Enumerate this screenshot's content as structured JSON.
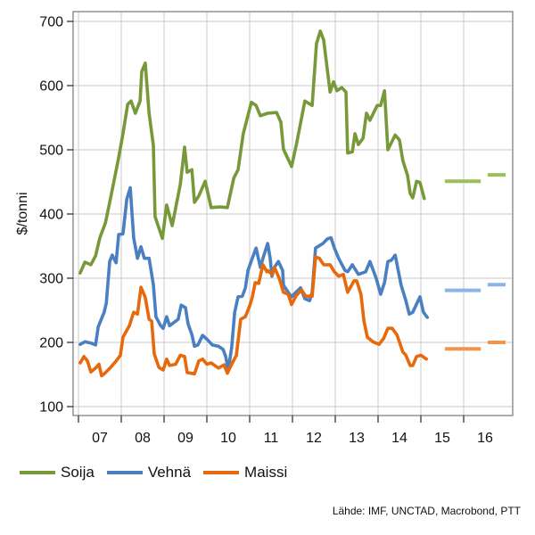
{
  "chart_data": {
    "type": "line",
    "title": "",
    "ylabel": "$/tonni",
    "xlabel": "",
    "ylim": [
      100,
      700
    ],
    "xlim": [
      2006.875,
      2017.35
    ],
    "yticks": [
      100,
      200,
      300,
      400,
      500,
      600,
      700
    ],
    "xtick_labels": [
      "07",
      "08",
      "09",
      "10",
      "11",
      "12",
      "13",
      "14",
      "15",
      "16"
    ],
    "grid": true,
    "legend_position": "bottom-left",
    "series": [
      {
        "name": "Soija",
        "color": "#77993a",
        "forecast_color": "#9bbf5a",
        "points": [
          [
            2007.04,
            308
          ],
          [
            2007.15,
            325
          ],
          [
            2007.29,
            321
          ],
          [
            2007.4,
            335
          ],
          [
            2007.5,
            363
          ],
          [
            2007.63,
            386
          ],
          [
            2007.73,
            418
          ],
          [
            2007.83,
            451
          ],
          [
            2007.94,
            488
          ],
          [
            2008.04,
            525
          ],
          [
            2008.15,
            571
          ],
          [
            2008.23,
            576
          ],
          [
            2008.33,
            557
          ],
          [
            2008.44,
            576
          ],
          [
            2008.48,
            622
          ],
          [
            2008.56,
            635
          ],
          [
            2008.65,
            557
          ],
          [
            2008.75,
            507
          ],
          [
            2008.79,
            396
          ],
          [
            2008.96,
            362
          ],
          [
            2009.06,
            414
          ],
          [
            2009.19,
            382
          ],
          [
            2009.38,
            446
          ],
          [
            2009.48,
            504
          ],
          [
            2009.54,
            465
          ],
          [
            2009.65,
            469
          ],
          [
            2009.71,
            418
          ],
          [
            2009.81,
            428
          ],
          [
            2009.96,
            451
          ],
          [
            2010.1,
            410
          ],
          [
            2010.31,
            411
          ],
          [
            2010.48,
            410
          ],
          [
            2010.63,
            456
          ],
          [
            2010.73,
            469
          ],
          [
            2010.85,
            525
          ],
          [
            2011.04,
            574
          ],
          [
            2011.15,
            569
          ],
          [
            2011.25,
            553
          ],
          [
            2011.42,
            557
          ],
          [
            2011.63,
            558
          ],
          [
            2011.73,
            543
          ],
          [
            2011.79,
            501
          ],
          [
            2011.98,
            474
          ],
          [
            2012.1,
            511
          ],
          [
            2012.29,
            576
          ],
          [
            2012.46,
            569
          ],
          [
            2012.56,
            665
          ],
          [
            2012.65,
            685
          ],
          [
            2012.73,
            671
          ],
          [
            2012.88,
            590
          ],
          [
            2012.96,
            606
          ],
          [
            2013.04,
            592
          ],
          [
            2013.15,
            597
          ],
          [
            2013.25,
            590
          ],
          [
            2013.29,
            495
          ],
          [
            2013.4,
            497
          ],
          [
            2013.46,
            525
          ],
          [
            2013.54,
            508
          ],
          [
            2013.65,
            518
          ],
          [
            2013.73,
            557
          ],
          [
            2013.81,
            546
          ],
          [
            2013.98,
            569
          ],
          [
            2014.06,
            569
          ],
          [
            2014.15,
            592
          ],
          [
            2014.23,
            500
          ],
          [
            2014.4,
            523
          ],
          [
            2014.5,
            515
          ],
          [
            2014.58,
            483
          ],
          [
            2014.69,
            460
          ],
          [
            2014.75,
            432
          ],
          [
            2014.81,
            425
          ],
          [
            2014.9,
            451
          ],
          [
            2014.98,
            449
          ],
          [
            2015.08,
            424
          ]
        ],
        "forecast": [
          {
            "year": 2015,
            "value": 451
          },
          {
            "year": 2016,
            "value": 461
          }
        ]
      },
      {
        "name": "Vehnä",
        "color": "#4a7fc1",
        "forecast_color": "#8db4e6",
        "points": [
          [
            2007.04,
            197
          ],
          [
            2007.15,
            201
          ],
          [
            2007.29,
            199
          ],
          [
            2007.4,
            196
          ],
          [
            2007.46,
            224
          ],
          [
            2007.6,
            247
          ],
          [
            2007.65,
            261
          ],
          [
            2007.73,
            326
          ],
          [
            2007.79,
            336
          ],
          [
            2007.88,
            324
          ],
          [
            2007.94,
            368
          ],
          [
            2008.04,
            369
          ],
          [
            2008.13,
            423
          ],
          [
            2008.21,
            441
          ],
          [
            2008.29,
            363
          ],
          [
            2008.38,
            331
          ],
          [
            2008.46,
            349
          ],
          [
            2008.54,
            331
          ],
          [
            2008.65,
            331
          ],
          [
            2008.75,
            290
          ],
          [
            2008.81,
            240
          ],
          [
            2008.92,
            226
          ],
          [
            2008.98,
            222
          ],
          [
            2009.06,
            240
          ],
          [
            2009.13,
            226
          ],
          [
            2009.27,
            233
          ],
          [
            2009.33,
            236
          ],
          [
            2009.4,
            258
          ],
          [
            2009.5,
            254
          ],
          [
            2009.56,
            229
          ],
          [
            2009.65,
            212
          ],
          [
            2009.71,
            194
          ],
          [
            2009.79,
            196
          ],
          [
            2009.9,
            211
          ],
          [
            2010.0,
            205
          ],
          [
            2010.13,
            196
          ],
          [
            2010.27,
            194
          ],
          [
            2010.38,
            189
          ],
          [
            2010.44,
            178
          ],
          [
            2010.5,
            157
          ],
          [
            2010.58,
            192
          ],
          [
            2010.65,
            247
          ],
          [
            2010.73,
            271
          ],
          [
            2010.83,
            272
          ],
          [
            2010.9,
            285
          ],
          [
            2010.96,
            312
          ],
          [
            2011.06,
            331
          ],
          [
            2011.15,
            347
          ],
          [
            2011.25,
            317
          ],
          [
            2011.31,
            331
          ],
          [
            2011.42,
            354
          ],
          [
            2011.48,
            331
          ],
          [
            2011.52,
            303
          ],
          [
            2011.58,
            317
          ],
          [
            2011.67,
            326
          ],
          [
            2011.77,
            312
          ],
          [
            2011.79,
            289
          ],
          [
            2011.9,
            278
          ],
          [
            2011.98,
            271
          ],
          [
            2012.08,
            278
          ],
          [
            2012.19,
            285
          ],
          [
            2012.29,
            268
          ],
          [
            2012.4,
            265
          ],
          [
            2012.46,
            278
          ],
          [
            2012.54,
            347
          ],
          [
            2012.71,
            354
          ],
          [
            2012.81,
            361
          ],
          [
            2012.9,
            363
          ],
          [
            2012.98,
            347
          ],
          [
            2013.08,
            331
          ],
          [
            2013.23,
            312
          ],
          [
            2013.29,
            310
          ],
          [
            2013.4,
            321
          ],
          [
            2013.54,
            306
          ],
          [
            2013.71,
            310
          ],
          [
            2013.81,
            326
          ],
          [
            2013.96,
            299
          ],
          [
            2014.06,
            275
          ],
          [
            2014.15,
            293
          ],
          [
            2014.23,
            326
          ],
          [
            2014.31,
            328
          ],
          [
            2014.4,
            336
          ],
          [
            2014.54,
            289
          ],
          [
            2014.65,
            265
          ],
          [
            2014.73,
            244
          ],
          [
            2014.81,
            247
          ],
          [
            2014.98,
            271
          ],
          [
            2015.06,
            247
          ],
          [
            2015.15,
            239
          ]
        ],
        "forecast": [
          {
            "year": 2015,
            "value": 281
          },
          {
            "year": 2016,
            "value": 290
          }
        ]
      },
      {
        "name": "Maissi",
        "color": "#e8690b",
        "forecast_color": "#f4944a",
        "points": [
          [
            2007.04,
            168
          ],
          [
            2007.13,
            178
          ],
          [
            2007.21,
            171
          ],
          [
            2007.29,
            154
          ],
          [
            2007.4,
            160
          ],
          [
            2007.48,
            166
          ],
          [
            2007.54,
            148
          ],
          [
            2007.6,
            151
          ],
          [
            2007.75,
            161
          ],
          [
            2007.88,
            171
          ],
          [
            2007.98,
            180
          ],
          [
            2008.04,
            208
          ],
          [
            2008.19,
            226
          ],
          [
            2008.29,
            247
          ],
          [
            2008.38,
            244
          ],
          [
            2008.46,
            286
          ],
          [
            2008.56,
            270
          ],
          [
            2008.65,
            236
          ],
          [
            2008.71,
            233
          ],
          [
            2008.77,
            182
          ],
          [
            2008.88,
            161
          ],
          [
            2008.98,
            157
          ],
          [
            2009.06,
            174
          ],
          [
            2009.13,
            164
          ],
          [
            2009.27,
            166
          ],
          [
            2009.38,
            180
          ],
          [
            2009.48,
            178
          ],
          [
            2009.54,
            153
          ],
          [
            2009.71,
            151
          ],
          [
            2009.81,
            171
          ],
          [
            2009.9,
            174
          ],
          [
            2010.0,
            166
          ],
          [
            2010.1,
            168
          ],
          [
            2010.27,
            160
          ],
          [
            2010.4,
            165
          ],
          [
            2010.48,
            152
          ],
          [
            2010.58,
            166
          ],
          [
            2010.69,
            180
          ],
          [
            2010.79,
            236
          ],
          [
            2010.9,
            240
          ],
          [
            2011.0,
            257
          ],
          [
            2011.06,
            270
          ],
          [
            2011.13,
            293
          ],
          [
            2011.21,
            292
          ],
          [
            2011.31,
            321
          ],
          [
            2011.4,
            310
          ],
          [
            2011.42,
            312
          ],
          [
            2011.52,
            306
          ],
          [
            2011.58,
            317
          ],
          [
            2011.69,
            300
          ],
          [
            2011.79,
            278
          ],
          [
            2011.9,
            275
          ],
          [
            2011.98,
            259
          ],
          [
            2012.08,
            272
          ],
          [
            2012.21,
            282
          ],
          [
            2012.31,
            272
          ],
          [
            2012.46,
            272
          ],
          [
            2012.54,
            333
          ],
          [
            2012.63,
            331
          ],
          [
            2012.73,
            321
          ],
          [
            2012.88,
            321
          ],
          [
            2012.98,
            310
          ],
          [
            2013.08,
            303
          ],
          [
            2013.19,
            306
          ],
          [
            2013.29,
            278
          ],
          [
            2013.44,
            296
          ],
          [
            2013.5,
            296
          ],
          [
            2013.6,
            275
          ],
          [
            2013.67,
            233
          ],
          [
            2013.75,
            208
          ],
          [
            2013.88,
            201
          ],
          [
            2014.02,
            197
          ],
          [
            2014.13,
            206
          ],
          [
            2014.23,
            222
          ],
          [
            2014.33,
            222
          ],
          [
            2014.44,
            212
          ],
          [
            2014.58,
            185
          ],
          [
            2014.65,
            180
          ],
          [
            2014.75,
            164
          ],
          [
            2014.81,
            164
          ],
          [
            2014.9,
            178
          ],
          [
            2015.0,
            180
          ],
          [
            2015.13,
            174
          ]
        ],
        "forecast": [
          {
            "year": 2015,
            "value": 190
          },
          {
            "year": 2016,
            "value": 200
          }
        ]
      }
    ],
    "source": "Lähde: IMF, UNCTAD, Macrobond, PTT"
  }
}
